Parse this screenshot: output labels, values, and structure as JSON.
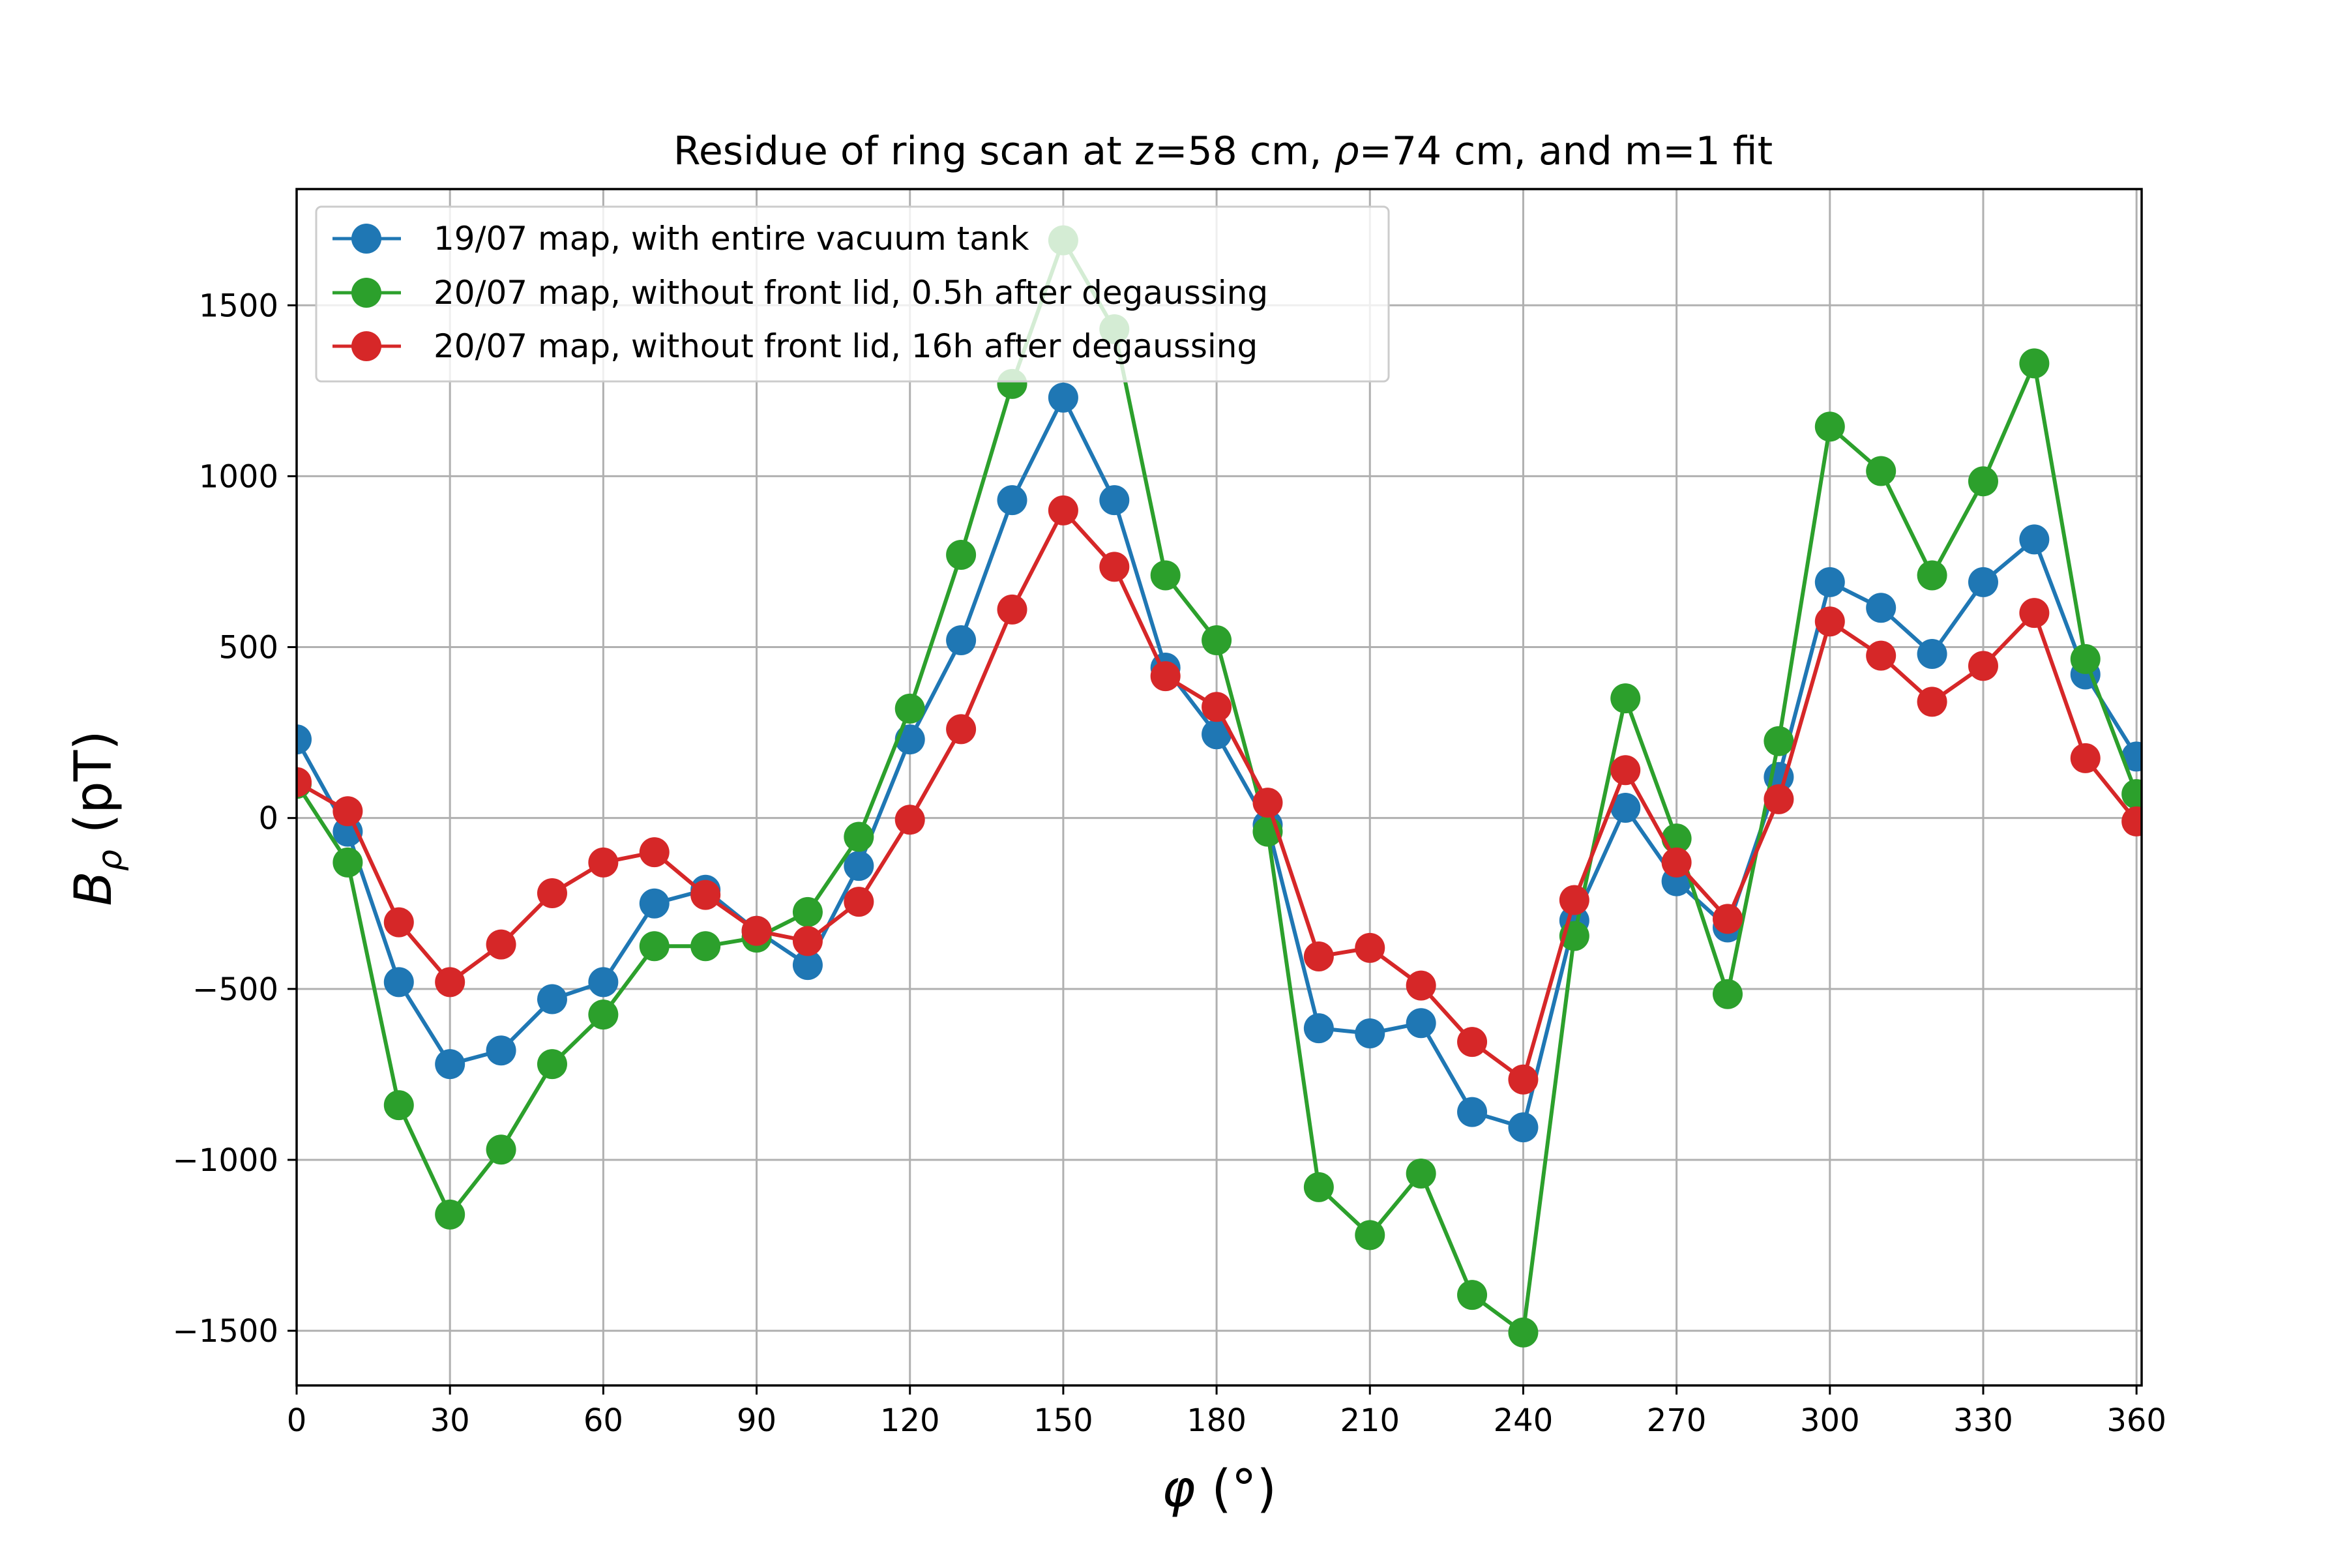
{
  "chart_data": {
    "type": "line",
    "title": "Residue of ring scan at z=58 cm, ρ=74 cm, and m=1 fit",
    "title_parts": {
      "pre": "Residue of ring scan at z=58 cm, ",
      "rho": "ρ",
      "post": "=74 cm, and m=1 fit"
    },
    "xlabel": "φ (°)",
    "xlabel_parts": {
      "phi": "φ",
      "unit": " (°)"
    },
    "ylabel": "Bρ (pT)",
    "ylabel_parts": {
      "B": "B",
      "sub": "ρ",
      "unit": " (pT)"
    },
    "xlim": [
      0,
      361
    ],
    "ylim": [
      -1660,
      1840
    ],
    "xticks": [
      0,
      30,
      60,
      90,
      120,
      150,
      180,
      210,
      240,
      270,
      300,
      330,
      360
    ],
    "yticks": [
      -1500,
      -1000,
      -500,
      0,
      500,
      1000,
      1500
    ],
    "ytick_labels": [
      "−1500",
      "−1000",
      "−500",
      "0",
      "500",
      "1000",
      "1500"
    ],
    "grid": true,
    "legend_position": "upper-left",
    "x": [
      0,
      10,
      20,
      30,
      40,
      50,
      60,
      70,
      80,
      90,
      100,
      110,
      120,
      130,
      140,
      150,
      160,
      170,
      180,
      190,
      200,
      210,
      220,
      230,
      240,
      250,
      260,
      270,
      280,
      290,
      300,
      310,
      320,
      330,
      340,
      350,
      360
    ],
    "series": [
      {
        "name": "19/07 map, with entire vacuum tank",
        "color": "#1f77b4",
        "values": [
          230,
          -40,
          -480,
          -720,
          -680,
          -530,
          -480,
          -250,
          -210,
          -330,
          -430,
          -140,
          230,
          520,
          930,
          1230,
          930,
          440,
          245,
          -20,
          -615,
          -630,
          -600,
          -860,
          -905,
          -300,
          30,
          -185,
          -320,
          120,
          690,
          615,
          480,
          690,
          815,
          420,
          180
        ]
      },
      {
        "name": "20/07 map, without front lid, 0.5h after degaussing",
        "color": "#2ca02c",
        "values": [
          100,
          -130,
          -840,
          -1160,
          -970,
          -720,
          -575,
          -375,
          -375,
          -350,
          -275,
          -55,
          320,
          770,
          1270,
          1690,
          1430,
          710,
          520,
          -40,
          -1080,
          -1220,
          -1040,
          -1395,
          -1505,
          -345,
          350,
          -60,
          -515,
          225,
          1145,
          1015,
          710,
          985,
          1330,
          465,
          70
        ]
      },
      {
        "name": "20/07 map, without front lid, 16h after degaussing",
        "color": "#d62728",
        "values": [
          105,
          20,
          -305,
          -480,
          -370,
          -220,
          -130,
          -100,
          -225,
          -330,
          -360,
          -245,
          -5,
          260,
          610,
          900,
          735,
          415,
          325,
          45,
          -405,
          -380,
          -490,
          -655,
          -765,
          -240,
          140,
          -130,
          -295,
          55,
          575,
          475,
          340,
          445,
          600,
          175,
          -10
        ]
      }
    ]
  }
}
